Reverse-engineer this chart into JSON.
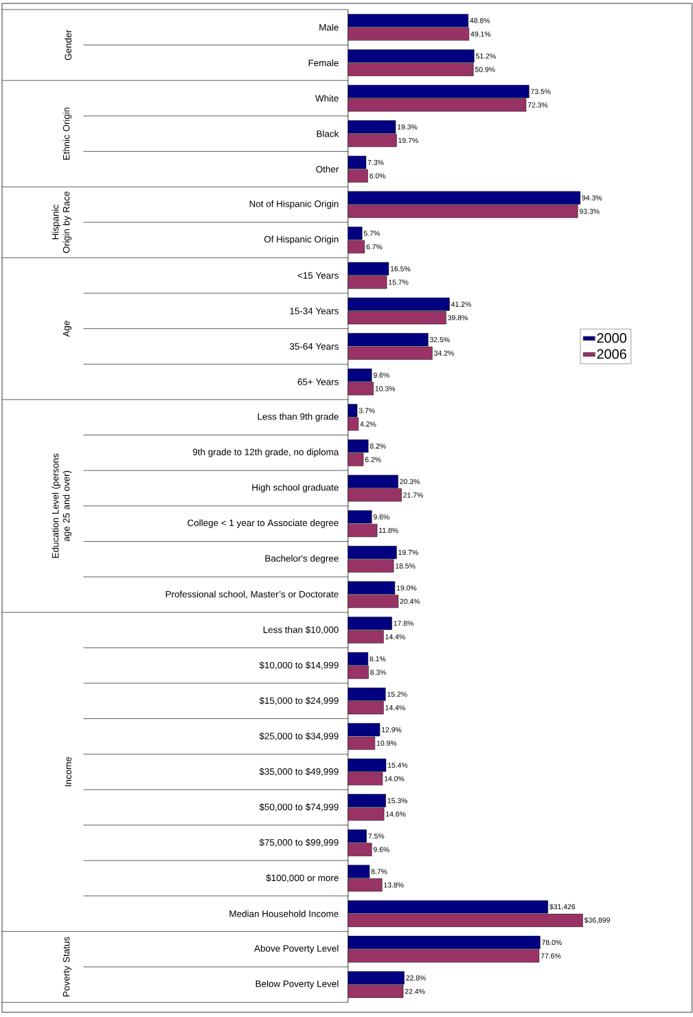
{
  "chart_data": [
    {
      "type": "bar",
      "orientation": "horizontal",
      "legend": "right",
      "categories": [
        "Male",
        "Female",
        "White",
        "Black",
        "Other",
        "Not of Hispanic Origin",
        "Of Hispanic Origin",
        "<15 Years",
        "15-34 Years",
        "35-64 Years",
        "65+ Years",
        "Less than 9th grade",
        "9th grade to 12th grade, no diploma",
        "High school graduate",
        "College < 1 year to Associate degree",
        "Bachelor's degree",
        "Professional school, Master’s or Doctorate",
        "Less than $10,000",
        "$10,000 to $14,999",
        "$15,000 to $24,999",
        "$25,000 to $34,999",
        "$35,000 to $49,999",
        "$50,000 to $74,999",
        "$75,000 to $99,999",
        "$100,000 or more"
      ],
      "series": [
        {
          "name": "2000",
          "color": "#000080",
          "values": [
            48.8,
            51.2,
            73.5,
            19.3,
            7.3,
            94.3,
            5.7,
            16.5,
            41.2,
            32.5,
            9.6,
            3.7,
            8.2,
            20.3,
            9.6,
            19.7,
            19.0,
            17.8,
            8.1,
            15.2,
            12.9,
            15.4,
            15.3,
            7.5,
            8.7
          ],
          "value_labels": [
            "48.8%",
            "51.2%",
            "73.5%",
            "19.3%",
            "7.3%",
            "94.3%",
            "5.7%",
            "16.5%",
            "41.2%",
            "32.5%",
            "9.6%",
            "3.7%",
            "8.2%",
            "20.3%",
            "9.6%",
            "19.7%",
            "19.0%",
            "17.8%",
            "8.1%",
            "15.2%",
            "12.9%",
            "15.4%",
            "15.3%",
            "7.5%",
            "8.7%"
          ]
        },
        {
          "name": "2006",
          "color": "#993366",
          "values": [
            49.1,
            50.9,
            72.3,
            19.7,
            8.0,
            93.3,
            6.7,
            15.7,
            39.8,
            34.2,
            10.3,
            4.2,
            6.2,
            21.7,
            11.8,
            18.5,
            20.4,
            14.4,
            8.3,
            14.4,
            10.9,
            14.0,
            14.6,
            9.6,
            13.8
          ],
          "value_labels": [
            "49.1%",
            "50.9%",
            "72.3%",
            "19.7%",
            "8.0%",
            "93.3%",
            "6.7%",
            "15.7%",
            "39.8%",
            "34.2%",
            "10.3%",
            "4.2%",
            "6.2%",
            "21.7%",
            "11.8%",
            "18.5%",
            "20.4%",
            "14.4%",
            "8.3%",
            "14.4%",
            "10.9%",
            "14.0%",
            "14.6%",
            "9.6%",
            "13.8%"
          ]
        }
      ],
      "annotations": [
        "Gender",
        "Ethnic Origin",
        "Hispanic Origin by Race",
        "Age",
        "Education Level (persons age 25 and over)",
        "Income"
      ]
    },
    {
      "type": "bar",
      "orientation": "horizontal",
      "categories": [
        "Median Household Income"
      ],
      "series": [
        {
          "color": "#000080",
          "values": [
            31426
          ],
          "value_labels": [
            "$31,426"
          ]
        },
        {
          "color": "#993366",
          "values": [
            36899
          ],
          "value_labels": [
            "$36,899"
          ]
        }
      ]
    },
    {
      "type": "bar",
      "orientation": "horizontal",
      "categories": [
        "Above Poverty Level",
        "Below Poverty Level"
      ],
      "series": [
        {
          "color": "#000080",
          "values": [
            78.0,
            22.8
          ],
          "value_labels": [
            "78.0%",
            "22.8%"
          ]
        },
        {
          "color": "#993366",
          "values": [
            77.6,
            22.4
          ],
          "value_labels": [
            "77.6%",
            "22.4%"
          ]
        }
      ],
      "annotations": [
        "Poverty Status"
      ]
    }
  ]
}
